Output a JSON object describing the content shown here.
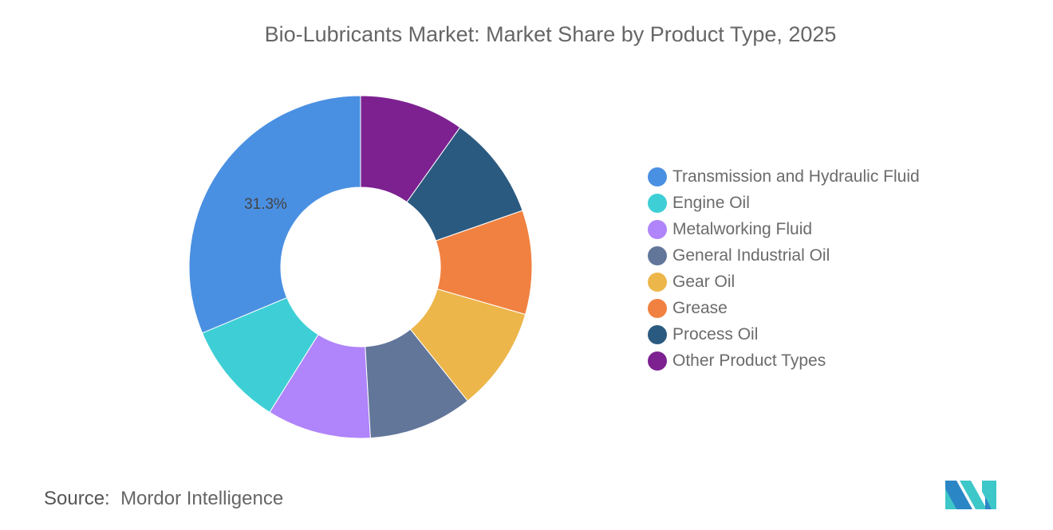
{
  "chart_data": {
    "type": "pie",
    "title": "Bio-Lubricants Market: Market Share by Product Type, 2025",
    "donut": true,
    "legend_placement": "right",
    "categories": [
      "Transmission and Hydraulic Fluid",
      "Engine Oil",
      "Metalworking Fluid",
      "General Industrial Oil",
      "Gear Oil",
      "Grease",
      "Process Oil",
      "Other Product Types"
    ],
    "values": [
      31.3,
      9.81,
      9.81,
      9.81,
      9.81,
      9.81,
      9.81,
      9.84
    ],
    "data_labels": [
      "31.3%",
      "",
      "",
      "",
      "",
      "",
      "",
      ""
    ],
    "colors": [
      "#4a90e2",
      "#3ecfd6",
      "#b084fa",
      "#62769a",
      "#ecb64a",
      "#f18140",
      "#2b5a80",
      "#7d2191"
    ]
  },
  "source": {
    "label": "Source:",
    "value": "Mordor Intelligence"
  },
  "logo": {
    "name": "mordor-intelligence-logo",
    "colors": [
      "#2b86c5",
      "#3ec7c9"
    ]
  }
}
